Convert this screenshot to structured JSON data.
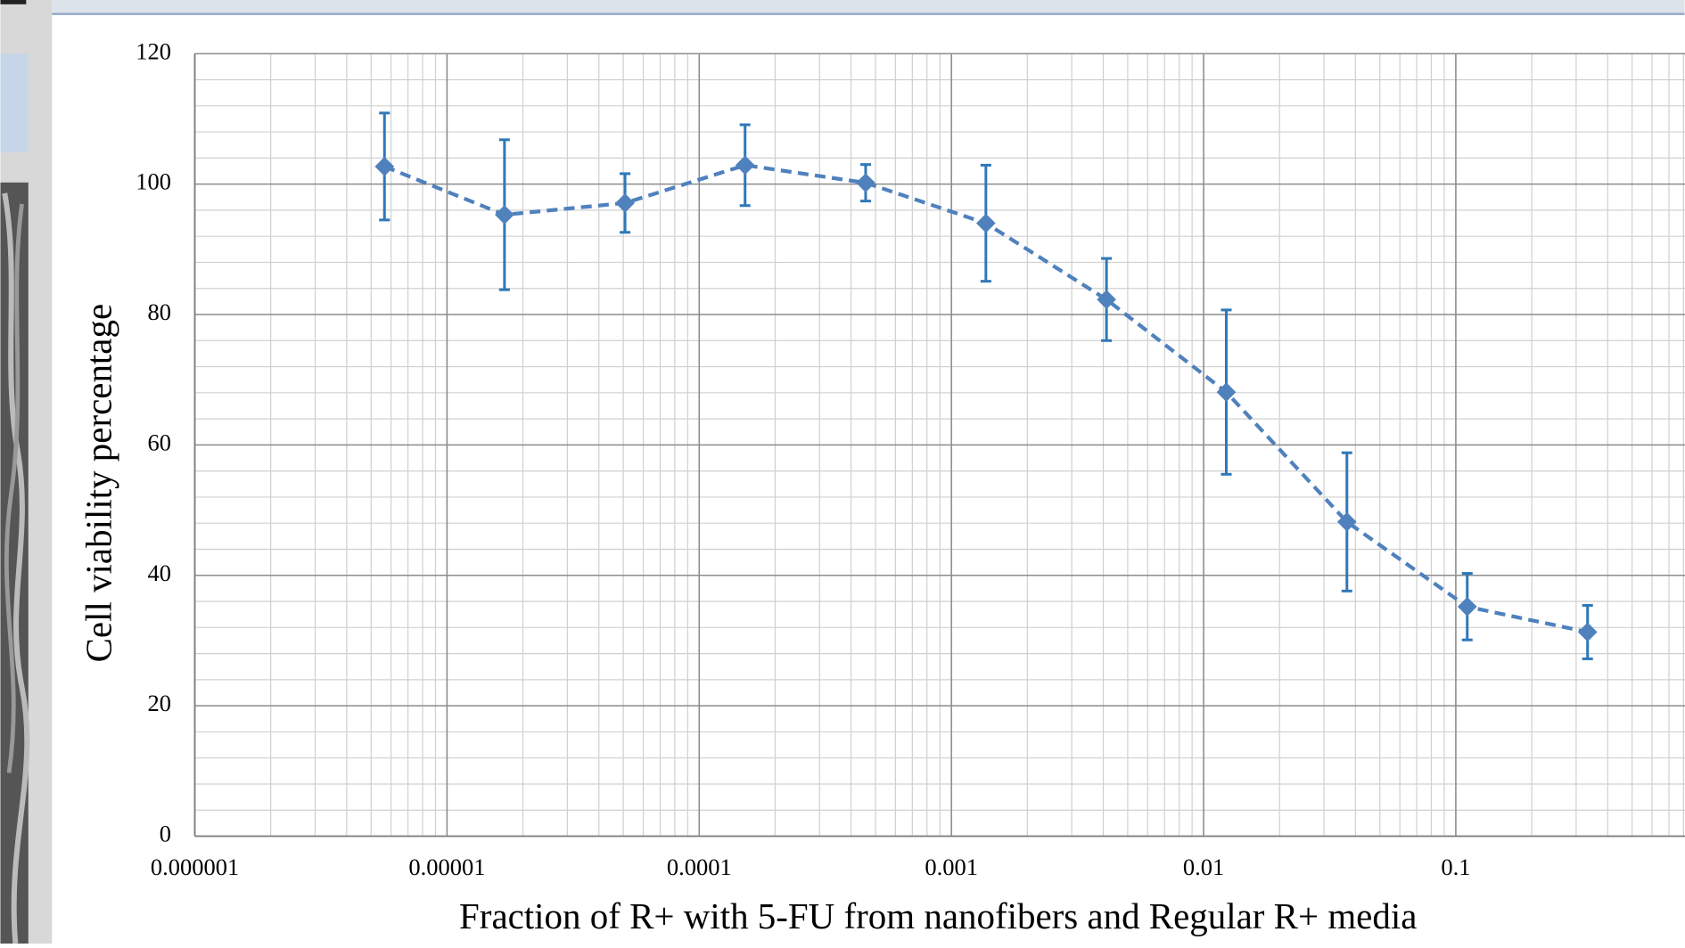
{
  "chart_data": {
    "type": "scatter",
    "x_label": "Fraction of R+ with 5-FU from nanofibers and Regular R+ media",
    "y_label": "Cell viability percentage",
    "x": [
      5.65e-06,
      1.69e-05,
      5.08e-05,
      0.000152,
      0.000457,
      0.00137,
      0.00412,
      0.0123,
      0.037,
      0.111,
      0.333
    ],
    "series": [
      {
        "color": "#4f81bd",
        "error_color": "#2f78b8",
        "values": [
          102.7,
          95.3,
          97.1,
          102.9,
          100.2,
          94.0,
          82.3,
          68.1,
          48.2,
          35.2,
          31.3
        ],
        "errors": [
          8.2,
          11.5,
          4.5,
          6.2,
          2.8,
          8.9,
          6.3,
          12.6,
          10.6,
          5.1,
          4.1
        ]
      }
    ],
    "xlim": [
      1e-06,
      1
    ],
    "x_log": true,
    "xticks": [
      1e-06,
      1e-05,
      0.0001,
      0.001,
      0.01,
      0.1
    ],
    "ylim": [
      0,
      120
    ],
    "yticks": [
      0,
      20,
      40,
      60,
      80,
      100,
      120
    ],
    "grid": true,
    "minor_grid": true,
    "line_style": "dashed"
  }
}
